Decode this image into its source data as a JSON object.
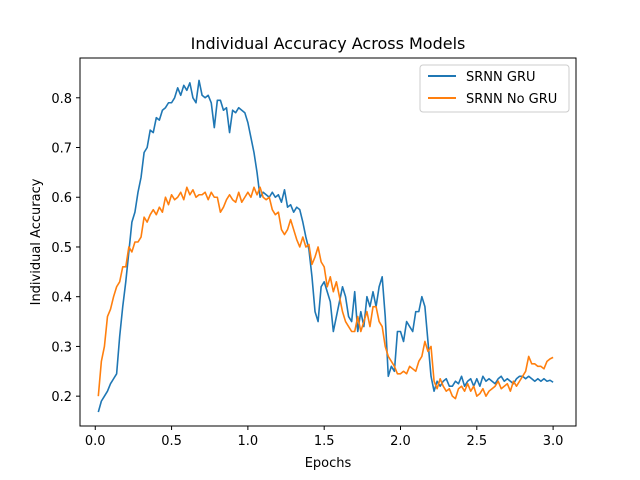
{
  "chart_data": {
    "type": "line",
    "title": "Individual Accuracy Across Models",
    "xlabel": "Epochs",
    "ylabel": "Individual Accuracy",
    "xlim": [
      -0.1,
      3.15
    ],
    "ylim": [
      0.14,
      0.88
    ],
    "xticks": [
      0.0,
      0.5,
      1.0,
      1.5,
      2.0,
      2.5,
      3.0
    ],
    "xtick_labels": [
      "0.0",
      "0.5",
      "1.0",
      "1.5",
      "2.0",
      "2.5",
      "3.0"
    ],
    "yticks": [
      0.2,
      0.3,
      0.4,
      0.5,
      0.6,
      0.7,
      0.8
    ],
    "ytick_labels": [
      "0.2",
      "0.3",
      "0.4",
      "0.5",
      "0.6",
      "0.7",
      "0.8"
    ],
    "grid": false,
    "legend_position": "top-right",
    "series": [
      {
        "name": "SRNN GRU",
        "color": "#1f77b4",
        "points": [
          [
            0.02,
            0.168
          ],
          [
            0.04,
            0.19
          ],
          [
            0.06,
            0.2
          ],
          [
            0.08,
            0.21
          ],
          [
            0.1,
            0.225
          ],
          [
            0.12,
            0.235
          ],
          [
            0.14,
            0.245
          ],
          [
            0.16,
            0.32
          ],
          [
            0.18,
            0.38
          ],
          [
            0.2,
            0.43
          ],
          [
            0.22,
            0.49
          ],
          [
            0.24,
            0.55
          ],
          [
            0.26,
            0.57
          ],
          [
            0.28,
            0.61
          ],
          [
            0.3,
            0.64
          ],
          [
            0.32,
            0.69
          ],
          [
            0.34,
            0.7
          ],
          [
            0.36,
            0.735
          ],
          [
            0.38,
            0.73
          ],
          [
            0.4,
            0.76
          ],
          [
            0.42,
            0.755
          ],
          [
            0.44,
            0.775
          ],
          [
            0.46,
            0.78
          ],
          [
            0.48,
            0.79
          ],
          [
            0.5,
            0.79
          ],
          [
            0.52,
            0.8
          ],
          [
            0.54,
            0.82
          ],
          [
            0.56,
            0.805
          ],
          [
            0.58,
            0.825
          ],
          [
            0.6,
            0.815
          ],
          [
            0.62,
            0.83
          ],
          [
            0.64,
            0.8
          ],
          [
            0.66,
            0.79
          ],
          [
            0.68,
            0.835
          ],
          [
            0.7,
            0.805
          ],
          [
            0.72,
            0.8
          ],
          [
            0.74,
            0.805
          ],
          [
            0.76,
            0.79
          ],
          [
            0.78,
            0.74
          ],
          [
            0.8,
            0.795
          ],
          [
            0.82,
            0.795
          ],
          [
            0.84,
            0.775
          ],
          [
            0.86,
            0.78
          ],
          [
            0.88,
            0.73
          ],
          [
            0.9,
            0.775
          ],
          [
            0.92,
            0.77
          ],
          [
            0.94,
            0.78
          ],
          [
            0.96,
            0.775
          ],
          [
            0.98,
            0.77
          ],
          [
            1.0,
            0.75
          ],
          [
            1.02,
            0.72
          ],
          [
            1.04,
            0.69
          ],
          [
            1.06,
            0.65
          ],
          [
            1.08,
            0.6
          ],
          [
            1.1,
            0.61
          ],
          [
            1.12,
            0.605
          ],
          [
            1.14,
            0.6
          ],
          [
            1.16,
            0.61
          ],
          [
            1.18,
            0.6
          ],
          [
            1.2,
            0.605
          ],
          [
            1.22,
            0.59
          ],
          [
            1.24,
            0.615
          ],
          [
            1.26,
            0.58
          ],
          [
            1.28,
            0.585
          ],
          [
            1.3,
            0.57
          ],
          [
            1.32,
            0.58
          ],
          [
            1.34,
            0.575
          ],
          [
            1.36,
            0.55
          ],
          [
            1.38,
            0.52
          ],
          [
            1.4,
            0.495
          ],
          [
            1.42,
            0.44
          ],
          [
            1.44,
            0.37
          ],
          [
            1.46,
            0.35
          ],
          [
            1.48,
            0.42
          ],
          [
            1.5,
            0.43
          ],
          [
            1.52,
            0.41
          ],
          [
            1.54,
            0.39
          ],
          [
            1.56,
            0.33
          ],
          [
            1.58,
            0.36
          ],
          [
            1.6,
            0.39
          ],
          [
            1.62,
            0.42
          ],
          [
            1.64,
            0.4
          ],
          [
            1.66,
            0.36
          ],
          [
            1.68,
            0.35
          ],
          [
            1.7,
            0.41
          ],
          [
            1.72,
            0.33
          ],
          [
            1.74,
            0.37
          ],
          [
            1.76,
            0.34
          ],
          [
            1.78,
            0.4
          ],
          [
            1.8,
            0.38
          ],
          [
            1.82,
            0.41
          ],
          [
            1.84,
            0.38
          ],
          [
            1.86,
            0.42
          ],
          [
            1.88,
            0.44
          ],
          [
            1.9,
            0.36
          ],
          [
            1.92,
            0.24
          ],
          [
            1.94,
            0.26
          ],
          [
            1.96,
            0.25
          ],
          [
            1.98,
            0.33
          ],
          [
            2.0,
            0.33
          ],
          [
            2.02,
            0.31
          ],
          [
            2.04,
            0.35
          ],
          [
            2.06,
            0.34
          ],
          [
            2.08,
            0.33
          ],
          [
            2.1,
            0.37
          ],
          [
            2.12,
            0.37
          ],
          [
            2.14,
            0.4
          ],
          [
            2.16,
            0.38
          ],
          [
            2.18,
            0.31
          ],
          [
            2.2,
            0.24
          ],
          [
            2.22,
            0.21
          ],
          [
            2.24,
            0.23
          ],
          [
            2.26,
            0.22
          ],
          [
            2.28,
            0.23
          ],
          [
            2.3,
            0.235
          ],
          [
            2.32,
            0.22
          ],
          [
            2.34,
            0.22
          ],
          [
            2.36,
            0.23
          ],
          [
            2.38,
            0.225
          ],
          [
            2.4,
            0.24
          ],
          [
            2.42,
            0.22
          ],
          [
            2.44,
            0.23
          ],
          [
            2.46,
            0.235
          ],
          [
            2.48,
            0.22
          ],
          [
            2.5,
            0.235
          ],
          [
            2.52,
            0.22
          ],
          [
            2.54,
            0.24
          ],
          [
            2.56,
            0.23
          ],
          [
            2.58,
            0.235
          ],
          [
            2.6,
            0.23
          ],
          [
            2.62,
            0.225
          ],
          [
            2.64,
            0.235
          ],
          [
            2.66,
            0.24
          ],
          [
            2.68,
            0.23
          ],
          [
            2.7,
            0.235
          ],
          [
            2.72,
            0.23
          ],
          [
            2.74,
            0.225
          ],
          [
            2.76,
            0.235
          ],
          [
            2.78,
            0.24
          ],
          [
            2.8,
            0.24
          ],
          [
            2.82,
            0.235
          ],
          [
            2.84,
            0.24
          ],
          [
            2.86,
            0.235
          ],
          [
            2.88,
            0.23
          ],
          [
            2.9,
            0.235
          ],
          [
            2.92,
            0.23
          ],
          [
            2.94,
            0.235
          ],
          [
            2.96,
            0.23
          ],
          [
            2.98,
            0.232
          ],
          [
            3.0,
            0.228
          ]
        ]
      },
      {
        "name": "SRNN No GRU",
        "color": "#ff7f0e",
        "points": [
          [
            0.02,
            0.2
          ],
          [
            0.04,
            0.27
          ],
          [
            0.06,
            0.3
          ],
          [
            0.08,
            0.36
          ],
          [
            0.1,
            0.375
          ],
          [
            0.12,
            0.4
          ],
          [
            0.14,
            0.42
          ],
          [
            0.16,
            0.43
          ],
          [
            0.18,
            0.46
          ],
          [
            0.2,
            0.46
          ],
          [
            0.22,
            0.5
          ],
          [
            0.24,
            0.49
          ],
          [
            0.26,
            0.51
          ],
          [
            0.28,
            0.51
          ],
          [
            0.3,
            0.52
          ],
          [
            0.32,
            0.56
          ],
          [
            0.34,
            0.55
          ],
          [
            0.36,
            0.565
          ],
          [
            0.38,
            0.575
          ],
          [
            0.4,
            0.565
          ],
          [
            0.42,
            0.58
          ],
          [
            0.44,
            0.57
          ],
          [
            0.46,
            0.6
          ],
          [
            0.48,
            0.585
          ],
          [
            0.5,
            0.605
          ],
          [
            0.52,
            0.595
          ],
          [
            0.54,
            0.6
          ],
          [
            0.56,
            0.61
          ],
          [
            0.58,
            0.595
          ],
          [
            0.6,
            0.62
          ],
          [
            0.62,
            0.605
          ],
          [
            0.64,
            0.615
          ],
          [
            0.66,
            0.6
          ],
          [
            0.68,
            0.605
          ],
          [
            0.7,
            0.605
          ],
          [
            0.72,
            0.61
          ],
          [
            0.74,
            0.595
          ],
          [
            0.76,
            0.61
          ],
          [
            0.78,
            0.6
          ],
          [
            0.8,
            0.6
          ],
          [
            0.82,
            0.57
          ],
          [
            0.84,
            0.58
          ],
          [
            0.86,
            0.595
          ],
          [
            0.88,
            0.605
          ],
          [
            0.9,
            0.595
          ],
          [
            0.92,
            0.59
          ],
          [
            0.94,
            0.61
          ],
          [
            0.96,
            0.59
          ],
          [
            0.98,
            0.6
          ],
          [
            1.0,
            0.61
          ],
          [
            1.02,
            0.6
          ],
          [
            1.04,
            0.62
          ],
          [
            1.06,
            0.605
          ],
          [
            1.08,
            0.62
          ],
          [
            1.1,
            0.6
          ],
          [
            1.12,
            0.595
          ],
          [
            1.14,
            0.6
          ],
          [
            1.16,
            0.575
          ],
          [
            1.18,
            0.565
          ],
          [
            1.2,
            0.57
          ],
          [
            1.22,
            0.535
          ],
          [
            1.24,
            0.525
          ],
          [
            1.26,
            0.535
          ],
          [
            1.28,
            0.555
          ],
          [
            1.3,
            0.535
          ],
          [
            1.32,
            0.515
          ],
          [
            1.34,
            0.5
          ],
          [
            1.36,
            0.52
          ],
          [
            1.38,
            0.5
          ],
          [
            1.4,
            0.505
          ],
          [
            1.42,
            0.465
          ],
          [
            1.44,
            0.48
          ],
          [
            1.46,
            0.5
          ],
          [
            1.48,
            0.47
          ],
          [
            1.5,
            0.46
          ],
          [
            1.52,
            0.42
          ],
          [
            1.54,
            0.44
          ],
          [
            1.56,
            0.41
          ],
          [
            1.58,
            0.43
          ],
          [
            1.6,
            0.4
          ],
          [
            1.62,
            0.37
          ],
          [
            1.64,
            0.35
          ],
          [
            1.66,
            0.34
          ],
          [
            1.68,
            0.33
          ],
          [
            1.7,
            0.33
          ],
          [
            1.72,
            0.36
          ],
          [
            1.74,
            0.33
          ],
          [
            1.76,
            0.35
          ],
          [
            1.78,
            0.37
          ],
          [
            1.8,
            0.34
          ],
          [
            1.82,
            0.38
          ],
          [
            1.84,
            0.38
          ],
          [
            1.86,
            0.35
          ],
          [
            1.88,
            0.34
          ],
          [
            1.9,
            0.3
          ],
          [
            1.92,
            0.28
          ],
          [
            1.94,
            0.27
          ],
          [
            1.96,
            0.26
          ],
          [
            1.98,
            0.245
          ],
          [
            2.0,
            0.245
          ],
          [
            2.02,
            0.25
          ],
          [
            2.04,
            0.245
          ],
          [
            2.06,
            0.26
          ],
          [
            2.08,
            0.255
          ],
          [
            2.1,
            0.25
          ],
          [
            2.12,
            0.27
          ],
          [
            2.14,
            0.28
          ],
          [
            2.16,
            0.31
          ],
          [
            2.18,
            0.29
          ],
          [
            2.2,
            0.3
          ],
          [
            2.22,
            0.23
          ],
          [
            2.24,
            0.215
          ],
          [
            2.26,
            0.235
          ],
          [
            2.28,
            0.22
          ],
          [
            2.3,
            0.21
          ],
          [
            2.32,
            0.215
          ],
          [
            2.34,
            0.2
          ],
          [
            2.36,
            0.195
          ],
          [
            2.38,
            0.215
          ],
          [
            2.4,
            0.22
          ],
          [
            2.42,
            0.21
          ],
          [
            2.44,
            0.225
          ],
          [
            2.46,
            0.21
          ],
          [
            2.48,
            0.22
          ],
          [
            2.5,
            0.2
          ],
          [
            2.52,
            0.205
          ],
          [
            2.54,
            0.215
          ],
          [
            2.56,
            0.2
          ],
          [
            2.58,
            0.21
          ],
          [
            2.6,
            0.215
          ],
          [
            2.62,
            0.22
          ],
          [
            2.64,
            0.23
          ],
          [
            2.66,
            0.215
          ],
          [
            2.68,
            0.22
          ],
          [
            2.7,
            0.225
          ],
          [
            2.72,
            0.21
          ],
          [
            2.74,
            0.23
          ],
          [
            2.76,
            0.22
          ],
          [
            2.78,
            0.23
          ],
          [
            2.8,
            0.24
          ],
          [
            2.82,
            0.25
          ],
          [
            2.84,
            0.28
          ],
          [
            2.86,
            0.265
          ],
          [
            2.88,
            0.265
          ],
          [
            2.9,
            0.26
          ],
          [
            2.92,
            0.26
          ],
          [
            2.94,
            0.255
          ],
          [
            2.96,
            0.27
          ],
          [
            2.98,
            0.275
          ],
          [
            3.0,
            0.278
          ]
        ]
      }
    ]
  }
}
